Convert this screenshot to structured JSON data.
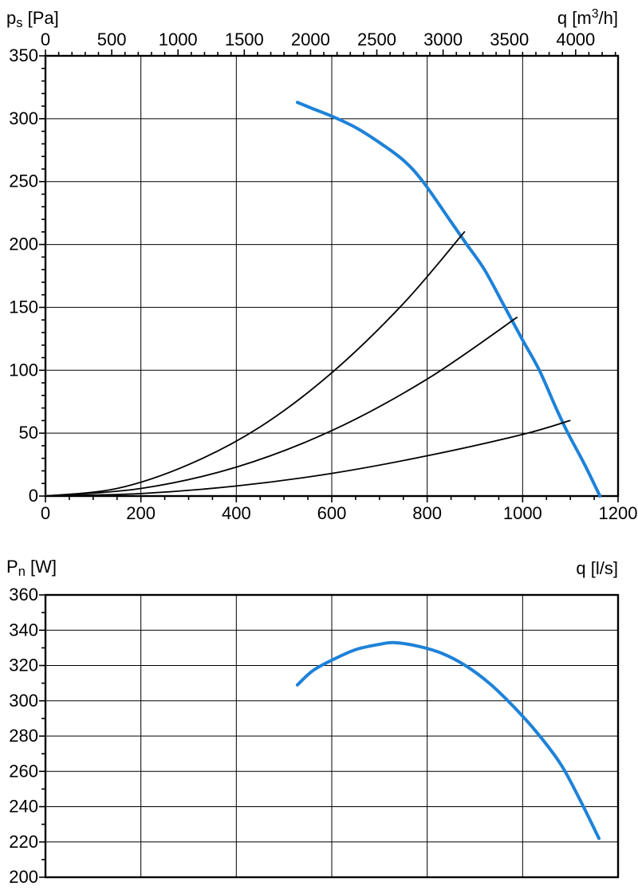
{
  "page": {
    "background": "#ffffff"
  },
  "colors": {
    "accent_blue": "#1e82d8",
    "line_black": "#000000",
    "text": "#000000"
  },
  "chart_data": [
    {
      "type": "line",
      "name": "pressure-vs-flow-chart",
      "y_axis": {
        "label_prefix": "p",
        "label_sub": "s",
        "label_sup": "",
        "label_suffix": " [Pa]",
        "min": 0,
        "max": 350,
        "major_step": 50,
        "minor_step": 10,
        "tick_labels": [
          0,
          50,
          100,
          150,
          200,
          250,
          300,
          350
        ]
      },
      "x_top_axis": {
        "label_prefix": "q [m",
        "label_sub": "",
        "label_sup": "3",
        "label_suffix": "/h]",
        "min": 0,
        "max": 4320,
        "major_step": 500,
        "minor_step": 100,
        "tick_labels": [
          0,
          500,
          1000,
          1500,
          2000,
          2500,
          3000,
          3500,
          4000
        ]
      },
      "x_bottom_axis": {
        "min": 0,
        "max": 1200,
        "major_step": 200,
        "minor_step": 50,
        "tick_labels": [
          0,
          200,
          400,
          600,
          800,
          1000,
          1200
        ]
      },
      "series": [
        {
          "name": "fan-curve",
          "color_key": "accent_blue",
          "stroke_width": 4,
          "points": [
            [
              528,
              313
            ],
            [
              560,
              308
            ],
            [
              600,
              302
            ],
            [
              650,
              293
            ],
            [
              700,
              281
            ],
            [
              750,
              267
            ],
            [
              791,
              250
            ],
            [
              850,
              218
            ],
            [
              883,
              200
            ],
            [
              920,
              180
            ],
            [
              963,
              150
            ],
            [
              1000,
              124
            ],
            [
              1035,
              100
            ],
            [
              1070,
              70
            ],
            [
              1095,
              50
            ],
            [
              1130,
              25
            ],
            [
              1162,
              0
            ]
          ]
        },
        {
          "name": "system-curve-1",
          "color_key": "line_black",
          "stroke_width": 1.8,
          "points": [
            [
              0,
              0
            ],
            [
              150,
              6
            ],
            [
              300,
              25
            ],
            [
              450,
              55
            ],
            [
              600,
              98
            ],
            [
              750,
              153
            ],
            [
              878,
              210
            ]
          ]
        },
        {
          "name": "system-curve-2",
          "color_key": "line_black",
          "stroke_width": 1.8,
          "points": [
            [
              0,
              0
            ],
            [
              200,
              6
            ],
            [
              400,
              23
            ],
            [
              600,
              52
            ],
            [
              800,
              93
            ],
            [
              988,
              142
            ]
          ]
        },
        {
          "name": "system-curve-3",
          "color_key": "line_black",
          "stroke_width": 1.8,
          "points": [
            [
              0,
              0
            ],
            [
              200,
              2
            ],
            [
              400,
              8
            ],
            [
              600,
              18
            ],
            [
              800,
              32
            ],
            [
              1000,
              49
            ],
            [
              1099,
              60
            ]
          ]
        }
      ]
    },
    {
      "type": "line",
      "name": "power-vs-flow-chart",
      "y_axis": {
        "label_prefix": "P",
        "label_sub": "n",
        "label_sup": "",
        "label_suffix": " [W]",
        "min": 200,
        "max": 360,
        "major_step": 20,
        "minor_step": 10,
        "tick_labels": [
          200,
          220,
          240,
          260,
          280,
          300,
          320,
          340,
          360
        ]
      },
      "x_top_axis": {
        "label_prefix": "q [l/s]",
        "label_sub": "",
        "label_sup": "",
        "label_suffix": "",
        "min": 0,
        "max": 1200,
        "major_step": 0,
        "minor_step": 0,
        "tick_labels": []
      },
      "x_bottom_axis": {
        "min": 0,
        "max": 1200,
        "major_step": 200,
        "minor_step": 0,
        "tick_labels": []
      },
      "series": [
        {
          "name": "power-curve",
          "color_key": "accent_blue",
          "stroke_width": 4,
          "points": [
            [
              528,
              309
            ],
            [
              560,
              317
            ],
            [
              600,
              323
            ],
            [
              650,
              329
            ],
            [
              700,
              332
            ],
            [
              730,
              333
            ],
            [
              780,
              331
            ],
            [
              830,
              327
            ],
            [
              880,
              320
            ],
            [
              930,
              310
            ],
            [
              980,
              297
            ],
            [
              1030,
              282
            ],
            [
              1080,
              264
            ],
            [
              1120,
              244
            ],
            [
              1160,
              222
            ]
          ]
        }
      ]
    }
  ]
}
